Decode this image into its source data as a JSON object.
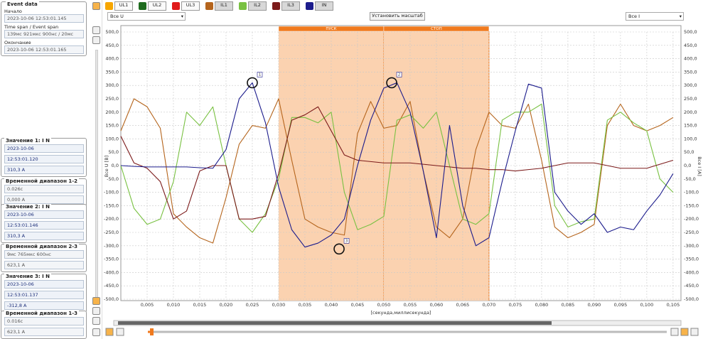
{
  "left_panel": {
    "event_data": {
      "title": "Event data",
      "fields": [
        {
          "label": "Начало",
          "value": "2023-10-06 12:53:01.145"
        },
        {
          "label": "Time span / Event span",
          "value": "139мс 921мкс 900нс / 20мс"
        },
        {
          "label": "Окончание",
          "value": "2023-10-06 12:53:01.165"
        }
      ]
    },
    "groups": [
      {
        "title": "Значение 1: I N",
        "values": [
          "2023-10-06",
          "12:53:01.120",
          "310,3 A"
        ]
      },
      {
        "title": "Временной диапазон 1-2",
        "values": [
          "0.026с",
          "0,000 A"
        ]
      },
      {
        "title": "Значение 2: I N",
        "values": [
          "2023-10-06",
          "12:53:01.146",
          "310,3 A"
        ]
      },
      {
        "title": "Временной диапазон 2-3",
        "values": [
          "9мс 765мкс 600нс",
          "623,1 A"
        ]
      },
      {
        "title": "Значение 3: I N",
        "values": [
          "2023-10-06",
          "12:53:01.137",
          "-312,8 A"
        ]
      },
      {
        "title": "Временной диапазон 1-3",
        "values": [
          "0.016с",
          "623,1 A"
        ]
      }
    ]
  },
  "toolbar": {
    "voltage_channels": [
      {
        "name": "UL1",
        "color": "#f7a600"
      },
      {
        "name": "UL2",
        "color": "#1e6b1e"
      },
      {
        "name": "UL3",
        "color": "#e01b1b"
      }
    ],
    "u_select": "Все U",
    "scale_button": "Установить масштаб",
    "i_select": "Все I"
  },
  "chart_data": {
    "type": "line",
    "y_label": "Все U [B]",
    "y2_label": "Все I [A]",
    "x_label": "[секунда,миллисекунда]",
    "grid": true,
    "xlim": [
      0,
      0.1065
    ],
    "xticks": [
      {
        "value": 0.005,
        "label": "0,005"
      },
      {
        "value": 0.01,
        "label": "0,010"
      },
      {
        "value": 0.015,
        "label": "0,015"
      },
      {
        "value": 0.02,
        "label": "0,020"
      },
      {
        "value": 0.025,
        "label": "0,025"
      },
      {
        "value": 0.03,
        "label": "0,030"
      },
      {
        "value": 0.035,
        "label": "0,035"
      },
      {
        "value": 0.04,
        "label": "0,040"
      },
      {
        "value": 0.045,
        "label": "0,045"
      },
      {
        "value": 0.05,
        "label": "0,050"
      },
      {
        "value": 0.055,
        "label": "0,055"
      },
      {
        "value": 0.06,
        "label": "0,060"
      },
      {
        "value": 0.065,
        "label": "0,065"
      },
      {
        "value": 0.07,
        "label": "0,070"
      },
      {
        "value": 0.075,
        "label": "0,075"
      },
      {
        "value": 0.08,
        "label": "0,080"
      },
      {
        "value": 0.085,
        "label": "0,085"
      },
      {
        "value": 0.09,
        "label": "0,090"
      },
      {
        "value": 0.095,
        "label": "0,095"
      },
      {
        "value": 0.1,
        "label": "0,100"
      },
      {
        "value": 0.105,
        "label": "0,105"
      }
    ],
    "ylim": [
      -500,
      500
    ],
    "yticks": [
      {
        "value": 500,
        "label": "500,0"
      },
      {
        "value": 450,
        "label": "450,0"
      },
      {
        "value": 400,
        "label": "400,0"
      },
      {
        "value": 350,
        "label": "350,0"
      },
      {
        "value": 300,
        "label": "300,0"
      },
      {
        "value": 250,
        "label": "250,0"
      },
      {
        "value": 200,
        "label": "200,0"
      },
      {
        "value": 150,
        "label": "150,0"
      },
      {
        "value": 100,
        "label": "100,0"
      },
      {
        "value": 50,
        "label": "50,0"
      },
      {
        "value": 0,
        "label": "0,0"
      },
      {
        "value": -50,
        "label": "-50,0"
      },
      {
        "value": -100,
        "label": "-100,0"
      },
      {
        "value": -150,
        "label": "-150,0"
      },
      {
        "value": -200,
        "label": "-200,0"
      },
      {
        "value": -250,
        "label": "-250,0"
      },
      {
        "value": -300,
        "label": "-300,0"
      },
      {
        "value": -350,
        "label": "-350,0"
      },
      {
        "value": -400,
        "label": "-400,0"
      },
      {
        "value": -450,
        "label": "-450,0"
      },
      {
        "value": -500,
        "label": "-500,0"
      }
    ],
    "y2lim": [
      -500,
      500
    ],
    "y2ticks": [
      {
        "value": 500,
        "label": "500,0"
      },
      {
        "value": 450,
        "label": "450,0"
      },
      {
        "value": 400,
        "label": "400,0"
      },
      {
        "value": 350,
        "label": "350,0"
      },
      {
        "value": 300,
        "label": "300,0"
      },
      {
        "value": 250,
        "label": "250,0"
      },
      {
        "value": 200,
        "label": "200,0"
      },
      {
        "value": 150,
        "label": "150,0"
      },
      {
        "value": 100,
        "label": "100,0"
      },
      {
        "value": 50,
        "label": "50,0"
      },
      {
        "value": 0,
        "label": "0,0"
      },
      {
        "value": -50,
        "label": "-50,0"
      },
      {
        "value": -100,
        "label": "-100,0"
      },
      {
        "value": -150,
        "label": "-150,0"
      },
      {
        "value": -200,
        "label": "-200,0"
      },
      {
        "value": -250,
        "label": "-250,0"
      },
      {
        "value": -300,
        "label": "-300,0"
      },
      {
        "value": -350,
        "label": "-350,0"
      },
      {
        "value": -400,
        "label": "-400,0"
      },
      {
        "value": -450,
        "label": "-450,0"
      },
      {
        "value": -500,
        "label": "-500,0"
      }
    ],
    "x": [
      0,
      0.0025,
      0.005,
      0.0075,
      0.01,
      0.0125,
      0.015,
      0.0175,
      0.02,
      0.0225,
      0.025,
      0.0275,
      0.03,
      0.0325,
      0.035,
      0.0375,
      0.04,
      0.0425,
      0.045,
      0.0475,
      0.05,
      0.0525,
      0.055,
      0.0575,
      0.06,
      0.0625,
      0.065,
      0.0675,
      0.07,
      0.0725,
      0.075,
      0.0775,
      0.08,
      0.0825,
      0.085,
      0.0875,
      0.09,
      0.0925,
      0.095,
      0.0975,
      0.1,
      0.1025,
      0.105
    ],
    "series": [
      {
        "name": "IL1",
        "color": "#b5651d",
        "axis": "y2",
        "values": [
          130,
          250,
          220,
          140,
          -180,
          -230,
          -270,
          -290,
          -120,
          80,
          150,
          140,
          250,
          20,
          -200,
          -230,
          -250,
          -260,
          120,
          240,
          140,
          150,
          240,
          -20,
          -230,
          -270,
          -200,
          60,
          200,
          150,
          140,
          230,
          20,
          -230,
          -270,
          -250,
          -220,
          150,
          230,
          150,
          130,
          150,
          180
        ]
      },
      {
        "name": "IL2",
        "color": "#79c142",
        "axis": "y2",
        "values": [
          0,
          -160,
          -220,
          -200,
          -60,
          200,
          150,
          220,
          0,
          -200,
          -250,
          -180,
          -50,
          180,
          180,
          160,
          200,
          -100,
          -240,
          -220,
          -190,
          170,
          190,
          140,
          200,
          0,
          -200,
          -220,
          -180,
          170,
          200,
          200,
          230,
          -150,
          -230,
          -210,
          -200,
          170,
          200,
          160,
          130,
          -50,
          -100
        ]
      },
      {
        "name": "IL3",
        "color": "#7b1a1a",
        "axis": "y2",
        "values": [
          110,
          10,
          -10,
          -60,
          -200,
          -170,
          -20,
          0,
          0,
          -200,
          -200,
          -190,
          -30,
          170,
          190,
          220,
          130,
          40,
          20,
          15,
          10,
          10,
          10,
          5,
          0,
          -5,
          -10,
          -10,
          -15,
          -15,
          -20,
          -15,
          -10,
          0,
          10,
          10,
          10,
          0,
          -10,
          -10,
          -10,
          5,
          20
        ]
      },
      {
        "name": "IN",
        "color": "#1c1c8c",
        "axis": "y2",
        "values": [
          0,
          -3,
          -5,
          -5,
          -5,
          -5,
          -8,
          -10,
          60,
          250,
          310,
          160,
          -80,
          -240,
          -305,
          -290,
          -260,
          -200,
          0,
          170,
          290,
          310,
          200,
          -20,
          -270,
          150,
          -150,
          -300,
          -270,
          -60,
          130,
          305,
          290,
          -100,
          -170,
          -220,
          -180,
          -250,
          -230,
          -240,
          -170,
          -110,
          -30
        ]
      }
    ],
    "regions": [
      {
        "label": "ПУСК",
        "x": [
          0.03,
          0.05
        ]
      },
      {
        "label": "СТОП",
        "x": [
          0.05,
          0.07
        ]
      }
    ],
    "annotations": [
      {
        "label": "1",
        "x": 0.025,
        "y": 310
      },
      {
        "label": "2",
        "x": 0.0515,
        "y": 310
      },
      {
        "label": "3",
        "x": 0.0415,
        "y": -312
      }
    ]
  }
}
